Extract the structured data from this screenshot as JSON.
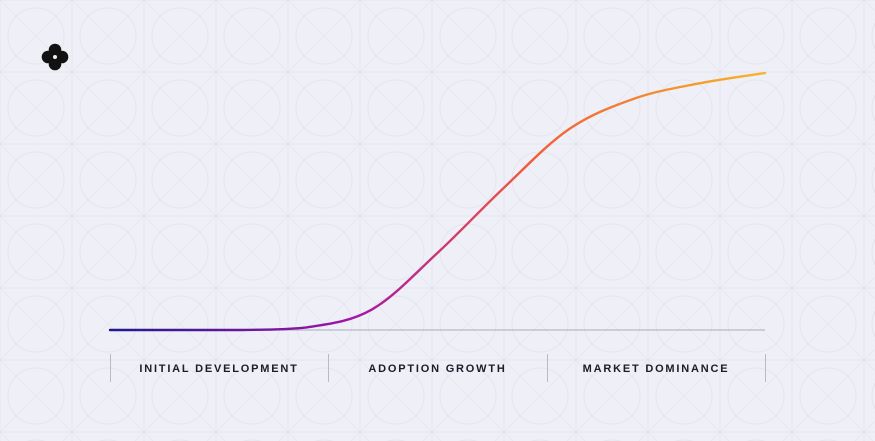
{
  "chart_data": {
    "type": "line",
    "categories": [
      "INITIAL DEVELOPMENT",
      "ADOPTION GROWTH",
      "MARKET DOMINANCE"
    ],
    "series": [
      {
        "values_by_phase_progress": [
          0,
          0,
          0,
          0.01,
          0.08,
          0.3,
          0.55,
          0.78,
          0.9,
          0.96,
          1.0
        ]
      }
    ],
    "grid": false,
    "legend": "none"
  },
  "colors": {
    "background": "#efeff7",
    "curve_start": "#1f1a8a",
    "curve_mid": "#a616a8",
    "curve_orange": "#f2603a",
    "curve_end": "#f6b52a",
    "baseline": "#b9b9c8",
    "logo": "#121212"
  },
  "logo": {
    "icon": "four-petal-flower-icon"
  }
}
